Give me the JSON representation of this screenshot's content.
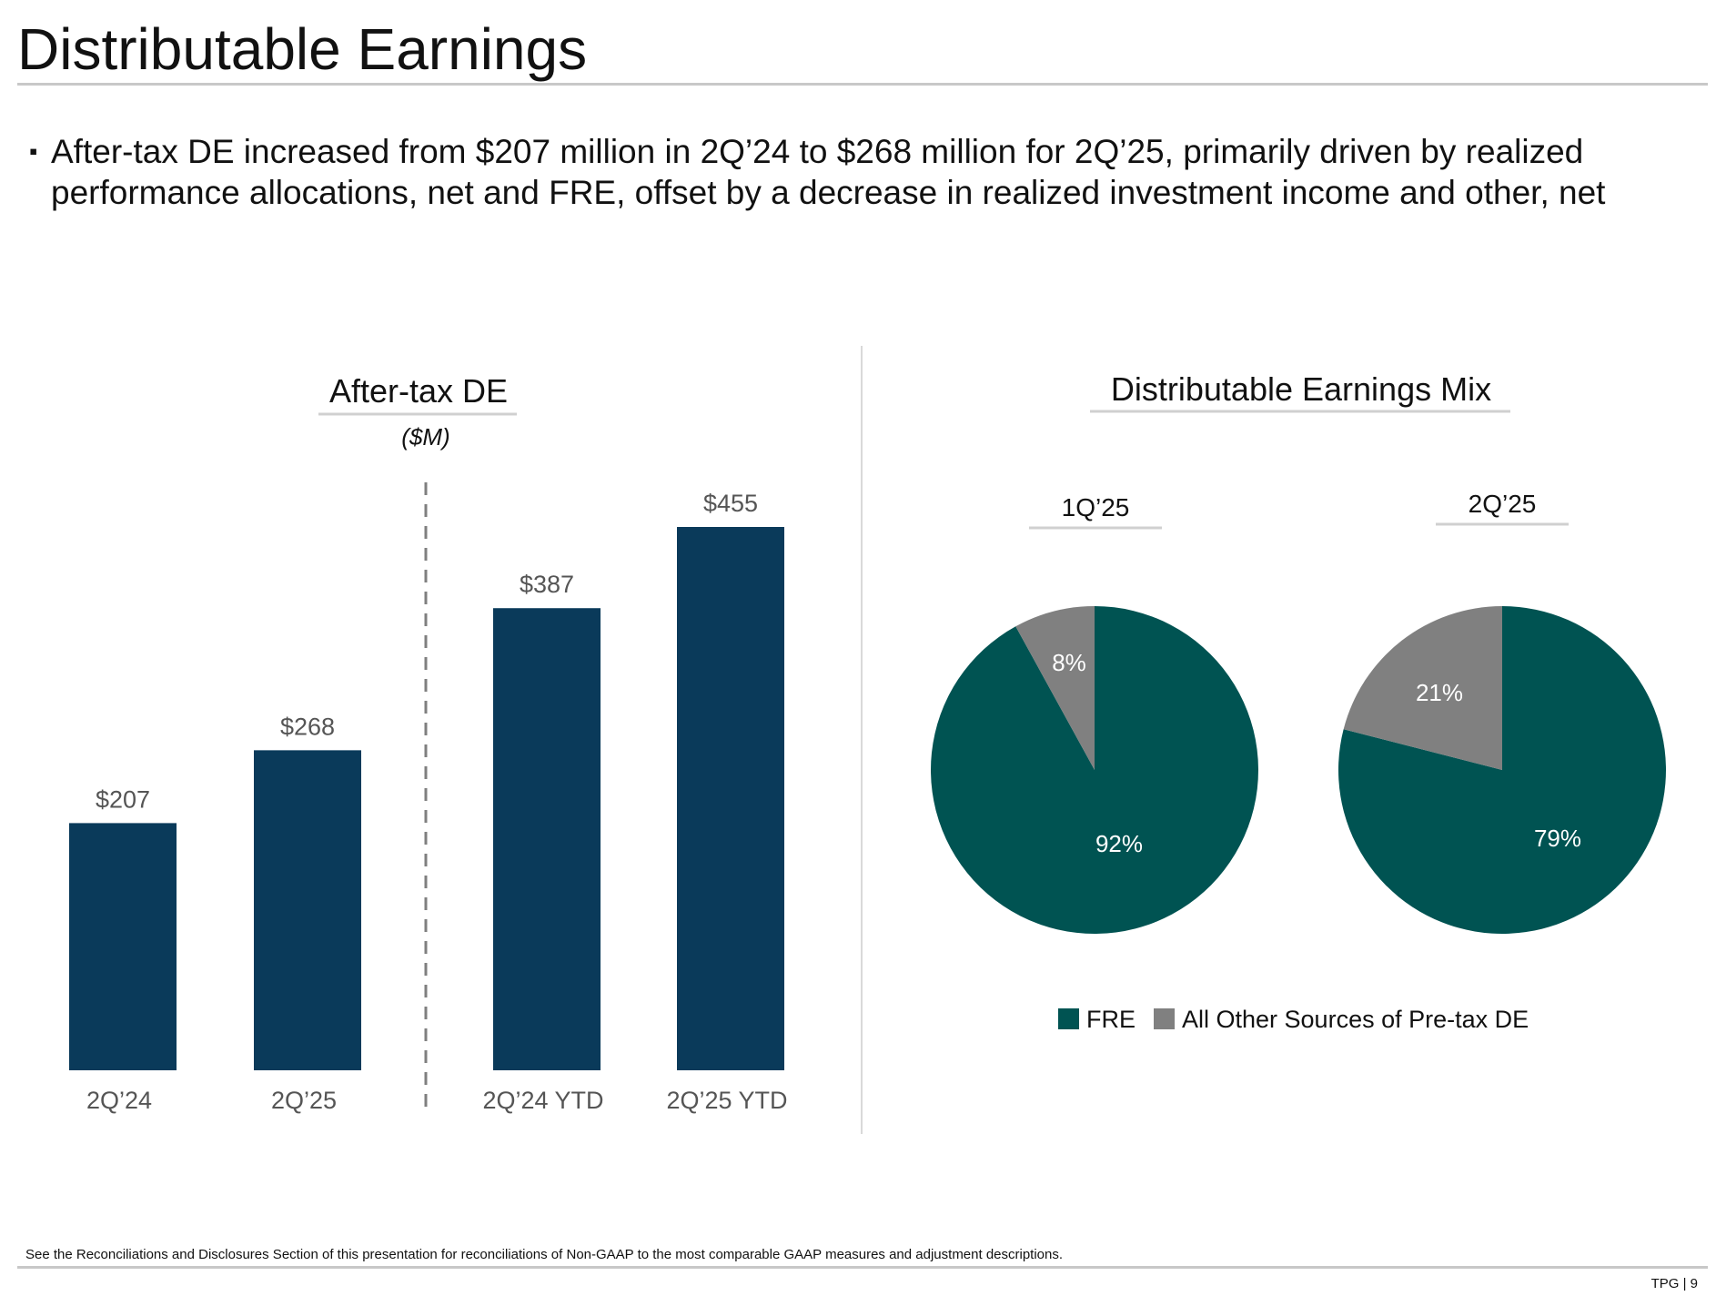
{
  "page": {
    "title": "Distributable Earnings",
    "bullet_mark": "▪",
    "bullet": "After-tax DE increased from $207 million in 2Q’24 to $268 million for 2Q’25, primarily driven by realized performance allocations, net and FRE, offset by a decrease in realized investment income and other, net",
    "footnote": "See the Reconciliations and Disclosures Section of this presentation for reconciliations of Non-GAAP to the most comparable GAAP measures and adjustment descriptions.",
    "page_number": "TPG | 9"
  },
  "colors": {
    "bar": "#0a3a5a",
    "fre": "#005352",
    "other": "#808080",
    "label_gray": "#555555"
  },
  "chart_data": [
    {
      "type": "bar",
      "title": "After-tax DE",
      "subtitle": "($M)",
      "categories": [
        "2Q’24",
        "2Q’25",
        "2Q’24 YTD",
        "2Q’25 YTD"
      ],
      "values": [
        207,
        268,
        387,
        455
      ],
      "value_labels": [
        "$207",
        "$268",
        "$387",
        "$455"
      ],
      "ylim": [
        0,
        500
      ],
      "grid": false,
      "groups": [
        [
          "2Q’24",
          "2Q’25"
        ],
        [
          "2Q’24 YTD",
          "2Q’25 YTD"
        ]
      ]
    },
    {
      "type": "pie",
      "title": "Distributable Earnings Mix",
      "legend": [
        "FRE",
        "All Other Sources of Pre-tax DE"
      ],
      "legend_position": "bottom",
      "pies": [
        {
          "label": "1Q’25",
          "slices": [
            {
              "name": "FRE",
              "value": 92,
              "label": "92%"
            },
            {
              "name": "All Other Sources of Pre-tax DE",
              "value": 8,
              "label": "8%"
            }
          ]
        },
        {
          "label": "2Q’25",
          "slices": [
            {
              "name": "FRE",
              "value": 79,
              "label": "79%"
            },
            {
              "name": "All Other Sources of Pre-tax DE",
              "value": 21,
              "label": "21%"
            }
          ]
        }
      ]
    }
  ]
}
